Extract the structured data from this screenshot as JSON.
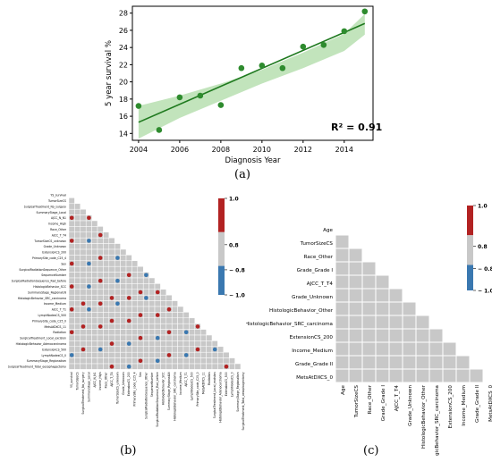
{
  "panels": {
    "a": "(a)",
    "b": "(b)",
    "c": "(c)"
  },
  "colors": {
    "scatter": "#2e8b2e",
    "fit": "#1f7a1f",
    "band": "#a8d8a0",
    "high": "#b22222",
    "low": "#3a78b0",
    "neutral": "#c8c8c8",
    "grid": "#ffffff"
  },
  "chart_data": [
    {
      "type": "scatter",
      "title": "",
      "xlabel": "Diagnosis Year",
      "ylabel": "5 year survival %",
      "xlim": [
        2003.7,
        2015.4
      ],
      "ylim": [
        13.2,
        28.8
      ],
      "xticks": [
        2004,
        2006,
        2008,
        2010,
        2012,
        2014
      ],
      "yticks": [
        14,
        16,
        18,
        20,
        22,
        24,
        26,
        28
      ],
      "grid": false,
      "x": [
        2004,
        2005,
        2006,
        2007,
        2008,
        2009,
        2010,
        2011,
        2012,
        2013,
        2014,
        2015
      ],
      "y": [
        17.2,
        14.4,
        18.2,
        18.4,
        17.3,
        21.6,
        21.9,
        21.6,
        24.1,
        24.3,
        25.9,
        28.2
      ],
      "fit": {
        "x": [
          2004,
          2015
        ],
        "y": [
          15.3,
          26.8
        ]
      },
      "band": {
        "x": [
          2004,
          2006,
          2008,
          2010,
          2012,
          2014,
          2015
        ],
        "upper": [
          17.2,
          18.4,
          19.8,
          21.4,
          23.4,
          25.6,
          27.9
        ],
        "lower": [
          13.4,
          15.8,
          17.8,
          19.8,
          21.6,
          23.6,
          25.5
        ]
      },
      "annotation": "R² = 0.91"
    },
    {
      "type": "heatmap",
      "title": "",
      "legend": {
        "placement": "right",
        "ticks": [
          "1.0",
          "0.8",
          "− 0.8",
          "− 1.0"
        ]
      },
      "labels": [
        "YS_survival",
        "TumorSizeCS",
        "SurgicalTreatment_No_surgery",
        "SummaryStage_Local",
        "AJCC_N_N1",
        "Income_High",
        "Race_Other",
        "AJCC_T_T4",
        "TumorSizeCS_unknown",
        "Grade_Unknown",
        "ExtensionCS_200",
        "PrimarySite_code_C25_4",
        "Sex",
        "SurgicalRadiationSequence_Other",
        "SequenceNumber",
        "SurgicalRadiationSequence_Rad_before",
        "HistologicBehavior_SCC",
        "SummaryStage_RegionalLN",
        "HistologicBehavior_SRC_carcinoma",
        "Income_Medium",
        "AJCC_T_T1",
        "LymphNodesCS_500",
        "PrimarySite_code_C25_0",
        "MetsAtDXCS_11",
        "Radiation",
        "SurgicalTreatment_Local_excision",
        "HistologicBehavior_Adenocarcinoma",
        "ExtensionCS_500",
        "LymphNodesCS_0",
        "SummaryStage_Regionalism",
        "SurgicalTreatment_Total_oesophagectomy"
      ]
    },
    {
      "type": "heatmap",
      "title": "",
      "legend": {
        "placement": "right",
        "ticks": [
          "1.0",
          "0.8",
          "− 0.8",
          "− 1.0"
        ]
      },
      "labels": [
        "Age",
        "TumorSizeCS",
        "Race_Other",
        "Grade_Grade I",
        "AJCC_T_T4",
        "Grade_Unknown",
        "HistologicBehavior_Other",
        "HistologicBehavior_SRC_carcinoma",
        "ExtensionCS_200",
        "Income_Medium",
        "Grade_Grade II",
        "MetsAtDXCS_0"
      ]
    }
  ]
}
